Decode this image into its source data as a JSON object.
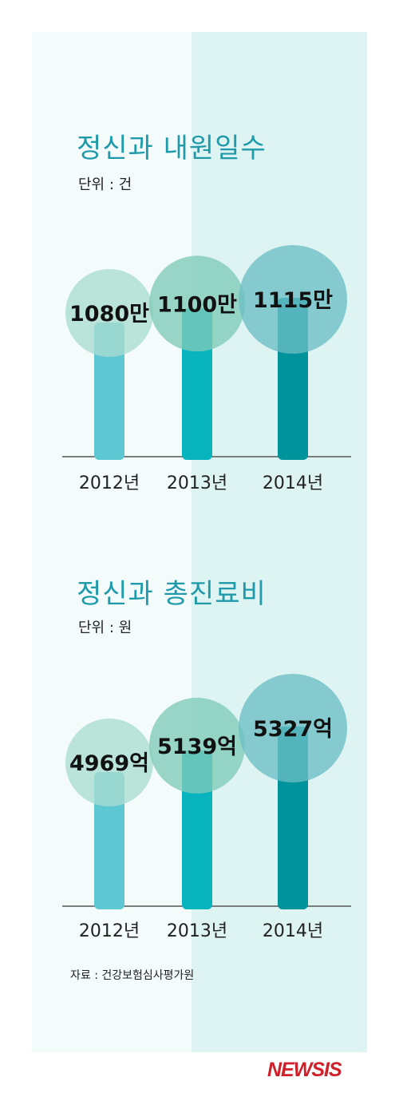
{
  "charts": [
    {
      "title": "정신과 내원일수",
      "unit": "단위 : 건"
    },
    {
      "title": "정신과 총진료비",
      "unit": "단위 : 원"
    }
  ],
  "chart_data": [
    {
      "type": "bar",
      "title": "정신과 내원일수",
      "unit": "단위 : 건",
      "categories": [
        "2012년",
        "2013년",
        "2014년"
      ],
      "values": [
        1080,
        1100,
        1115
      ],
      "value_labels": [
        "1080만",
        "1100만",
        "1115만"
      ],
      "value_unit": "만",
      "bar_colors": [
        "#5ec8d2",
        "#07b4be",
        "#00939c"
      ],
      "bubble_colors": [
        "#a9dccf",
        "#7fcbb9",
        "#6bbec5"
      ]
    },
    {
      "type": "bar",
      "title": "정신과 총진료비",
      "unit": "단위 : 원",
      "categories": [
        "2012년",
        "2013년",
        "2014년"
      ],
      "values": [
        4969,
        5139,
        5327
      ],
      "value_labels": [
        "4969억",
        "5139억",
        "5327억"
      ],
      "value_unit": "억",
      "bar_colors": [
        "#5ec8d2",
        "#07b4be",
        "#00939c"
      ],
      "bubble_colors": [
        "#a9dccf",
        "#7fcbb9",
        "#6bbec5"
      ]
    }
  ],
  "footer": {
    "source": "자료 : 건강보험심사평가원",
    "logo": "NEWSIS"
  },
  "colors": {
    "title": "#1e9aaa",
    "panel_left": "#f3fbfb",
    "panel_right": "#def4f2",
    "axis": "#555555",
    "logo": "#d0202a"
  }
}
